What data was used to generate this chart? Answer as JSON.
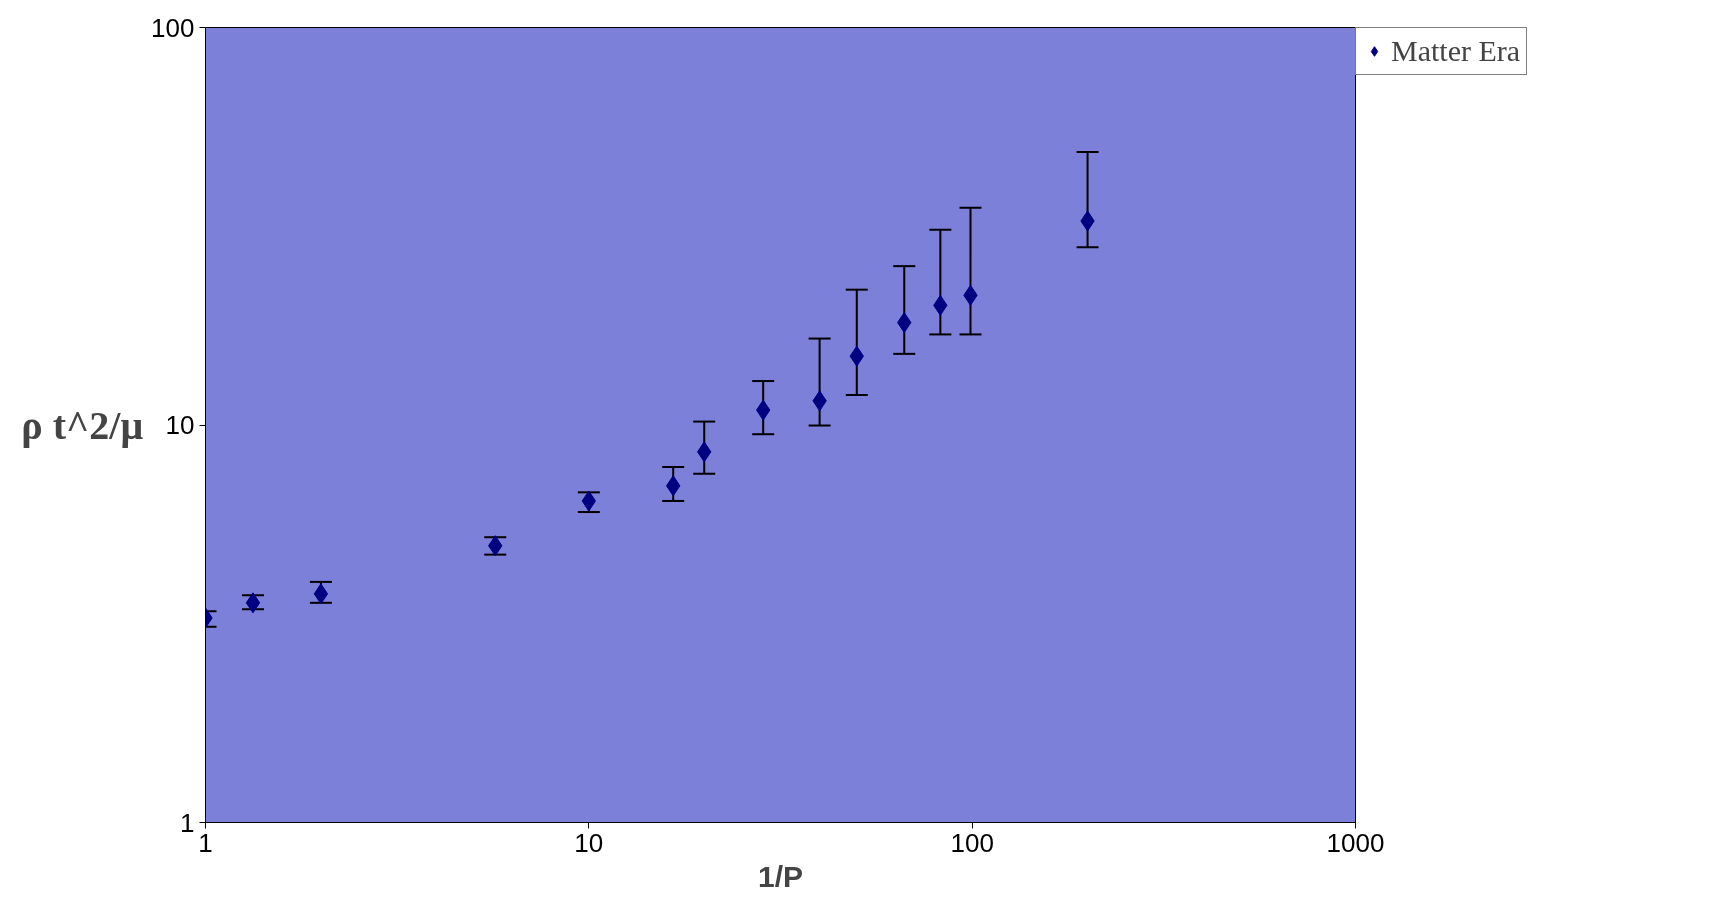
{
  "chart_data": {
    "type": "scatter",
    "ylabel": "ρ t^2/μ",
    "xlabel": "1/P",
    "log": "xy",
    "xlim": [
      1,
      1000
    ],
    "ylim": [
      1,
      100
    ],
    "xticks": [
      1,
      10,
      100,
      1000
    ],
    "yticks": [
      1,
      10,
      100
    ],
    "grid": false,
    "legend": "right",
    "marker": "diamond",
    "series": [
      {
        "name": "Matter Era",
        "color": "#000080",
        "x": [
          1,
          1.33,
          2,
          5.7,
          10,
          16.6,
          20,
          28.5,
          40,
          50,
          66.5,
          82.6,
          99,
          200
        ],
        "values": [
          3.27,
          3.57,
          3.76,
          4.97,
          6.44,
          7.03,
          8.56,
          10.9,
          11.5,
          14.9,
          18.1,
          20.0,
          21.2,
          32.6
        ],
        "errors": [
          [
            3.11,
            3.4
          ],
          [
            3.44,
            3.73
          ],
          [
            3.57,
            4.03
          ],
          [
            4.72,
            5.22
          ],
          [
            6.04,
            6.77
          ],
          [
            6.44,
            7.84
          ],
          [
            7.54,
            10.2
          ],
          [
            9.48,
            12.9
          ],
          [
            9.97,
            16.5
          ],
          [
            11.9,
            21.9
          ],
          [
            15.1,
            25.1
          ],
          [
            16.9,
            31.0
          ],
          [
            16.9,
            35.2
          ],
          [
            28.0,
            48.6
          ]
        ]
      }
    ]
  }
}
